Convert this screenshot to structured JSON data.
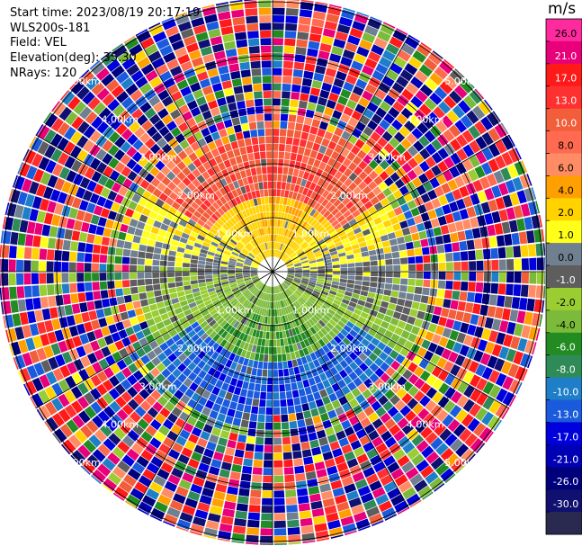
{
  "header": {
    "start_time": "Start time: 2023/08/19 20:17:19",
    "instrument": "WLS200s-181",
    "field": "Field: VEL",
    "elevation": "Elevation(deg): 35.30",
    "nrays": "NRays: 120"
  },
  "colorbar": {
    "unit": "m/s",
    "ticks": [
      "26.0",
      "21.0",
      "17.0",
      "13.0",
      "10.0",
      "8.0",
      "6.0",
      "4.0",
      "2.0",
      "1.0",
      "0.0",
      "-1.0",
      "-2.0",
      "-4.0",
      "-6.0",
      "-8.0",
      "-10.0",
      "-13.0",
      "-17.0",
      "-21.0",
      "-26.0",
      "-30.0"
    ],
    "colors": [
      "#ff2a9d",
      "#e8007a",
      "#ff1a1a",
      "#ff3030",
      "#f25d3a",
      "#ff6a50",
      "#ff8c64",
      "#ff9f00",
      "#ffd200",
      "#ffff1a",
      "#708090",
      "#5e5e5e",
      "#9acd32",
      "#7cba3a",
      "#228b22",
      "#2e8b57",
      "#1e7fc8",
      "#1a5adc",
      "#0000dc",
      "#0000b4",
      "#00007d",
      "#101070",
      "#2a2a50"
    ]
  },
  "chart_data": {
    "type": "ppi",
    "field": "VEL",
    "units": "m/s",
    "elevation_deg": 35.3,
    "n_rays": 120,
    "range_rings_km": [
      1.0,
      2.0,
      3.0,
      4.0,
      5.0
    ],
    "range_ring_labels": [
      "1.00km",
      "2.00km",
      "3.00km",
      "4.00km",
      "5.00km"
    ],
    "clim": [
      -30.0,
      26.0
    ],
    "wind_pattern": {
      "toward_positive_azimuth_deg": 0,
      "toward_negative_azimuth_deg": 180
    }
  }
}
